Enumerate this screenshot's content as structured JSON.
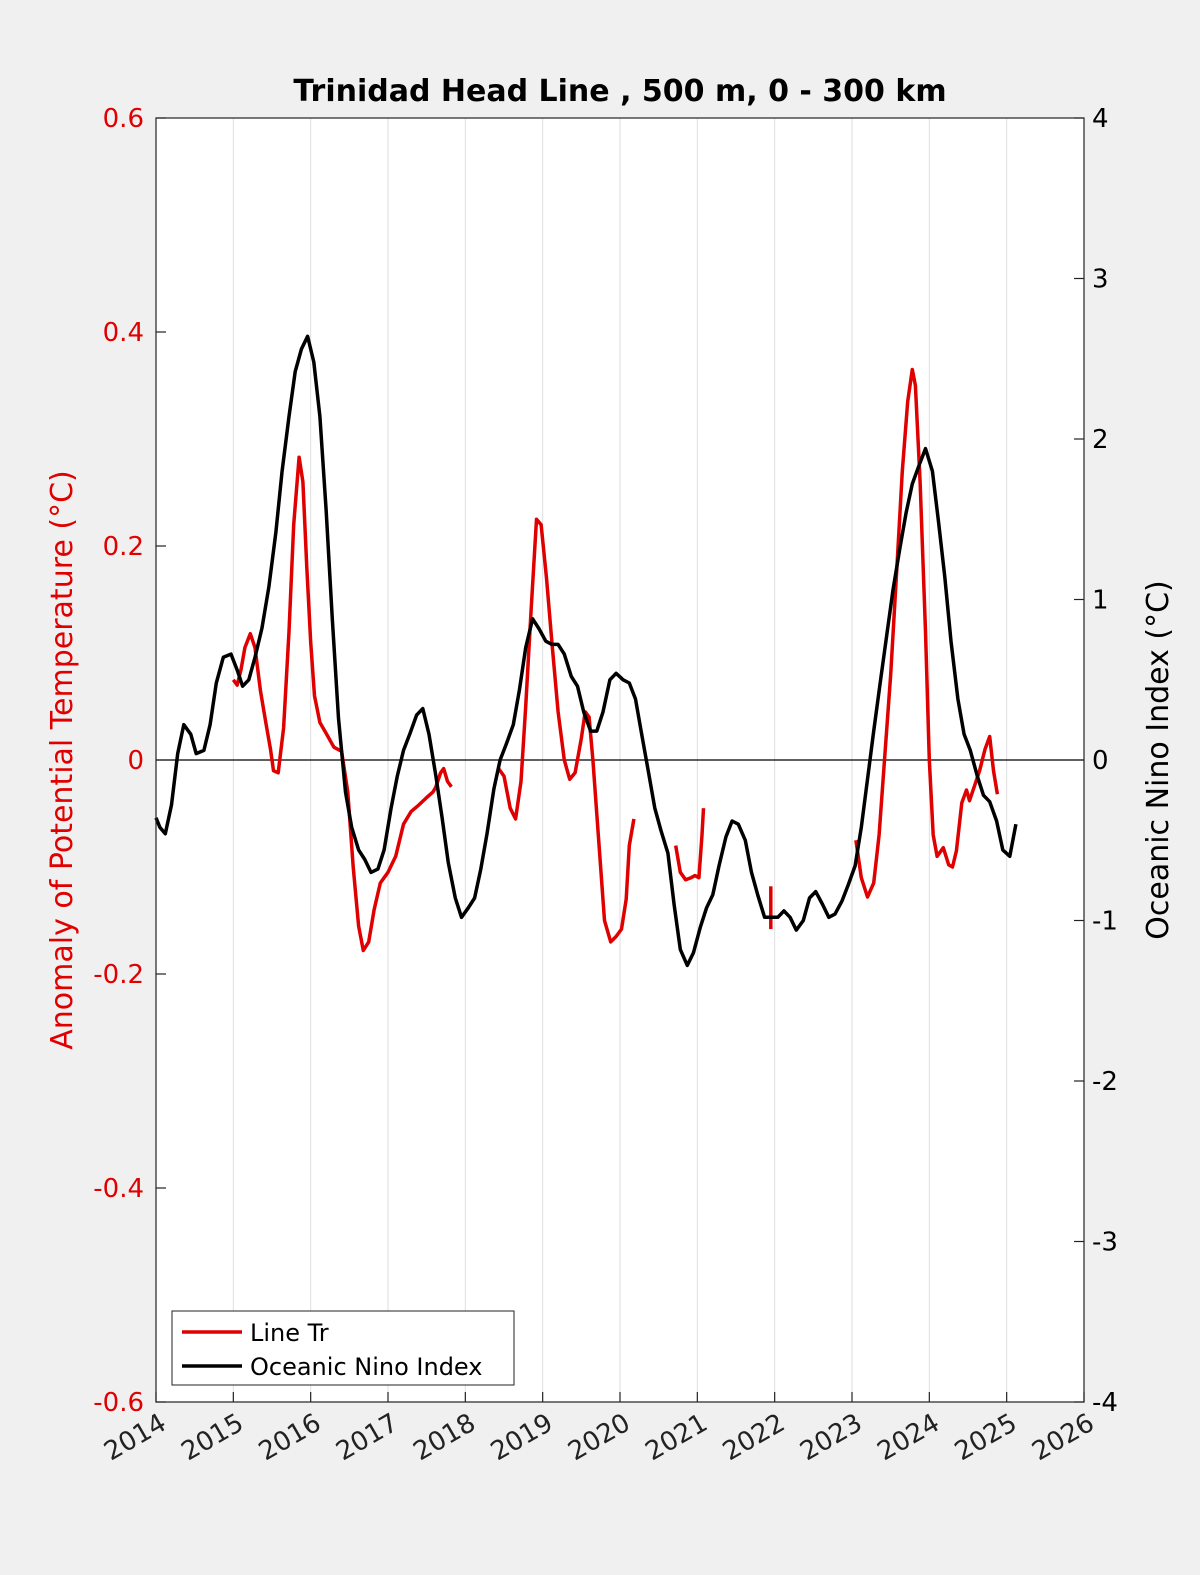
{
  "chart_data": {
    "type": "line",
    "title": "Trinidad Head Line , 500 m, 0 - 300 km",
    "ylabel_left": "Anomaly of Potential Temperature (°C)",
    "ylabel_right": "Oceanic Nino Index (°C)",
    "xlim": [
      2014,
      2026
    ],
    "ylim_left": [
      -0.6,
      0.6
    ],
    "ylim_right": [
      -4,
      4
    ],
    "x_ticks": [
      "2014",
      "2015",
      "2016",
      "2017",
      "2018",
      "2019",
      "2020",
      "2021",
      "2022",
      "2023",
      "2024",
      "2025",
      "2026"
    ],
    "y_left_ticks": [
      "-0.6",
      "-0.4",
      "-0.2",
      "0",
      "0.2",
      "0.4",
      "0.6"
    ],
    "y_right_ticks": [
      "-4",
      "-3",
      "-2",
      "-1",
      "0",
      "1",
      "2",
      "3",
      "4"
    ],
    "grid": "vertical",
    "legend_position": "bottom-left",
    "colors": {
      "left_axis": "#e00000",
      "right_axis": "#000000",
      "line_tr": "#e00000",
      "oni": "#000000"
    },
    "series": [
      {
        "name": "Line Tr",
        "axis": "left",
        "color": "#e00000",
        "segments": [
          [
            [
              2015.0,
              0.075
            ],
            [
              2015.05,
              0.07
            ],
            [
              2015.1,
              0.085
            ],
            [
              2015.15,
              0.105
            ],
            [
              2015.22,
              0.118
            ],
            [
              2015.28,
              0.105
            ],
            [
              2015.35,
              0.065
            ],
            [
              2015.42,
              0.035
            ],
            [
              2015.48,
              0.01
            ],
            [
              2015.52,
              -0.01
            ],
            [
              2015.58,
              -0.012
            ],
            [
              2015.65,
              0.03
            ],
            [
              2015.72,
              0.12
            ],
            [
              2015.78,
              0.22
            ],
            [
              2015.85,
              0.283
            ],
            [
              2015.9,
              0.26
            ],
            [
              2015.95,
              0.18
            ],
            [
              2016.0,
              0.11
            ],
            [
              2016.05,
              0.06
            ],
            [
              2016.12,
              0.035
            ],
            [
              2016.2,
              0.025
            ],
            [
              2016.3,
              0.012
            ],
            [
              2016.4,
              0.008
            ],
            [
              2016.48,
              -0.03
            ],
            [
              2016.55,
              -0.1
            ],
            [
              2016.62,
              -0.155
            ],
            [
              2016.68,
              -0.178
            ],
            [
              2016.75,
              -0.17
            ],
            [
              2016.82,
              -0.14
            ],
            [
              2016.9,
              -0.115
            ],
            [
              2017.0,
              -0.105
            ],
            [
              2017.1,
              -0.09
            ],
            [
              2017.2,
              -0.06
            ],
            [
              2017.3,
              -0.048
            ],
            [
              2017.4,
              -0.042
            ],
            [
              2017.5,
              -0.035
            ],
            [
              2017.58,
              -0.03
            ],
            [
              2017.62,
              -0.025
            ],
            [
              2017.68,
              -0.012
            ],
            [
              2017.72,
              -0.008
            ],
            [
              2017.77,
              -0.02
            ],
            [
              2017.82,
              -0.025
            ]
          ],
          [
            [
              2018.42,
              -0.007
            ],
            [
              2018.5,
              -0.015
            ],
            [
              2018.58,
              -0.045
            ],
            [
              2018.65,
              -0.055
            ],
            [
              2018.72,
              -0.02
            ],
            [
              2018.78,
              0.05
            ],
            [
              2018.85,
              0.14
            ],
            [
              2018.92,
              0.225
            ],
            [
              2018.98,
              0.22
            ],
            [
              2019.05,
              0.17
            ],
            [
              2019.12,
              0.11
            ],
            [
              2019.2,
              0.045
            ],
            [
              2019.28,
              0.0
            ],
            [
              2019.35,
              -0.018
            ],
            [
              2019.42,
              -0.012
            ],
            [
              2019.5,
              0.02
            ],
            [
              2019.55,
              0.045
            ],
            [
              2019.6,
              0.04
            ],
            [
              2019.65,
              0.0
            ],
            [
              2019.72,
              -0.07
            ],
            [
              2019.8,
              -0.15
            ],
            [
              2019.88,
              -0.17
            ],
            [
              2019.95,
              -0.165
            ],
            [
              2020.02,
              -0.158
            ],
            [
              2020.08,
              -0.13
            ],
            [
              2020.12,
              -0.08
            ],
            [
              2020.18,
              -0.055
            ]
          ],
          [
            [
              2020.72,
              -0.08
            ],
            [
              2020.78,
              -0.105
            ],
            [
              2020.85,
              -0.112
            ],
            [
              2020.92,
              -0.11
            ],
            [
              2020.97,
              -0.108
            ],
            [
              2021.02,
              -0.11
            ],
            [
              2021.06,
              -0.07
            ],
            [
              2021.08,
              -0.045
            ]
          ],
          [
            [
              2021.95,
              -0.118
            ],
            [
              2021.95,
              -0.158
            ]
          ],
          [
            [
              2023.05,
              -0.075
            ],
            [
              2023.12,
              -0.11
            ],
            [
              2023.2,
              -0.128
            ],
            [
              2023.28,
              -0.115
            ],
            [
              2023.35,
              -0.07
            ],
            [
              2023.42,
              0.0
            ],
            [
              2023.5,
              0.08
            ],
            [
              2023.58,
              0.18
            ],
            [
              2023.65,
              0.27
            ],
            [
              2023.72,
              0.335
            ],
            [
              2023.78,
              0.365
            ],
            [
              2023.82,
              0.35
            ],
            [
              2023.88,
              0.26
            ],
            [
              2023.95,
              0.12
            ],
            [
              2024.0,
              0.0
            ],
            [
              2024.05,
              -0.07
            ],
            [
              2024.1,
              -0.09
            ],
            [
              2024.18,
              -0.082
            ],
            [
              2024.25,
              -0.098
            ],
            [
              2024.3,
              -0.1
            ],
            [
              2024.35,
              -0.085
            ],
            [
              2024.42,
              -0.04
            ],
            [
              2024.48,
              -0.028
            ],
            [
              2024.52,
              -0.038
            ],
            [
              2024.58,
              -0.025
            ],
            [
              2024.65,
              -0.01
            ],
            [
              2024.72,
              0.01
            ],
            [
              2024.78,
              0.022
            ],
            [
              2024.83,
              -0.01
            ],
            [
              2024.88,
              -0.032
            ]
          ]
        ]
      },
      {
        "name": "Oceanic Nino Index",
        "axis": "right",
        "color": "#000000",
        "segments": [
          [
            [
              2014.0,
              -0.36
            ],
            [
              2014.05,
              -0.42
            ],
            [
              2014.12,
              -0.46
            ],
            [
              2014.2,
              -0.28
            ],
            [
              2014.28,
              0.04
            ],
            [
              2014.36,
              0.22
            ],
            [
              2014.45,
              0.16
            ],
            [
              2014.52,
              0.04
            ],
            [
              2014.62,
              0.06
            ],
            [
              2014.7,
              0.22
            ],
            [
              2014.78,
              0.48
            ],
            [
              2014.87,
              0.64
            ],
            [
              2014.97,
              0.66
            ],
            [
              2015.05,
              0.56
            ],
            [
              2015.12,
              0.46
            ],
            [
              2015.2,
              0.5
            ],
            [
              2015.28,
              0.64
            ],
            [
              2015.37,
              0.82
            ],
            [
              2015.46,
              1.08
            ],
            [
              2015.55,
              1.42
            ],
            [
              2015.63,
              1.8
            ],
            [
              2015.72,
              2.14
            ],
            [
              2015.8,
              2.42
            ],
            [
              2015.88,
              2.56
            ],
            [
              2015.96,
              2.64
            ],
            [
              2016.04,
              2.48
            ],
            [
              2016.12,
              2.14
            ],
            [
              2016.2,
              1.56
            ],
            [
              2016.28,
              0.88
            ],
            [
              2016.36,
              0.26
            ],
            [
              2016.45,
              -0.2
            ],
            [
              2016.53,
              -0.42
            ],
            [
              2016.62,
              -0.56
            ],
            [
              2016.7,
              -0.62
            ],
            [
              2016.78,
              -0.7
            ],
            [
              2016.87,
              -0.68
            ],
            [
              2016.95,
              -0.56
            ],
            [
              2017.04,
              -0.3
            ],
            [
              2017.12,
              -0.1
            ],
            [
              2017.2,
              0.06
            ],
            [
              2017.28,
              0.16
            ],
            [
              2017.37,
              0.28
            ],
            [
              2017.45,
              0.32
            ],
            [
              2017.53,
              0.16
            ],
            [
              2017.62,
              -0.1
            ],
            [
              2017.7,
              -0.36
            ],
            [
              2017.78,
              -0.64
            ],
            [
              2017.87,
              -0.86
            ],
            [
              2017.95,
              -0.98
            ],
            [
              2018.04,
              -0.92
            ],
            [
              2018.12,
              -0.86
            ],
            [
              2018.2,
              -0.68
            ],
            [
              2018.28,
              -0.46
            ],
            [
              2018.37,
              -0.18
            ],
            [
              2018.45,
              0.0
            ],
            [
              2018.53,
              0.1
            ],
            [
              2018.62,
              0.22
            ],
            [
              2018.7,
              0.44
            ],
            [
              2018.78,
              0.7
            ],
            [
              2018.87,
              0.88
            ],
            [
              2018.95,
              0.82
            ],
            [
              2019.04,
              0.74
            ],
            [
              2019.12,
              0.72
            ],
            [
              2019.2,
              0.72
            ],
            [
              2019.28,
              0.66
            ],
            [
              2019.37,
              0.52
            ],
            [
              2019.45,
              0.46
            ],
            [
              2019.53,
              0.3
            ],
            [
              2019.62,
              0.18
            ],
            [
              2019.7,
              0.18
            ],
            [
              2019.78,
              0.3
            ],
            [
              2019.87,
              0.5
            ],
            [
              2019.95,
              0.54
            ],
            [
              2020.04,
              0.5
            ],
            [
              2020.12,
              0.48
            ],
            [
              2020.2,
              0.38
            ],
            [
              2020.28,
              0.16
            ],
            [
              2020.37,
              -0.08
            ],
            [
              2020.45,
              -0.3
            ],
            [
              2020.53,
              -0.44
            ],
            [
              2020.62,
              -0.58
            ],
            [
              2020.7,
              -0.9
            ],
            [
              2020.78,
              -1.18
            ],
            [
              2020.87,
              -1.28
            ],
            [
              2020.95,
              -1.2
            ],
            [
              2021.04,
              -1.04
            ],
            [
              2021.12,
              -0.92
            ],
            [
              2021.2,
              -0.84
            ],
            [
              2021.28,
              -0.66
            ],
            [
              2021.37,
              -0.48
            ],
            [
              2021.45,
              -0.38
            ],
            [
              2021.53,
              -0.4
            ],
            [
              2021.62,
              -0.5
            ],
            [
              2021.7,
              -0.7
            ],
            [
              2021.78,
              -0.84
            ],
            [
              2021.87,
              -0.98
            ],
            [
              2021.95,
              -0.98
            ],
            [
              2022.04,
              -0.98
            ],
            [
              2022.12,
              -0.94
            ],
            [
              2022.2,
              -0.98
            ],
            [
              2022.28,
              -1.06
            ],
            [
              2022.37,
              -1.0
            ],
            [
              2022.45,
              -0.86
            ],
            [
              2022.53,
              -0.82
            ],
            [
              2022.62,
              -0.9
            ],
            [
              2022.7,
              -0.98
            ],
            [
              2022.78,
              -0.96
            ],
            [
              2022.87,
              -0.88
            ],
            [
              2022.95,
              -0.78
            ],
            [
              2023.04,
              -0.66
            ],
            [
              2023.12,
              -0.42
            ],
            [
              2023.2,
              -0.12
            ],
            [
              2023.28,
              0.18
            ],
            [
              2023.37,
              0.5
            ],
            [
              2023.45,
              0.78
            ],
            [
              2023.53,
              1.06
            ],
            [
              2023.62,
              1.32
            ],
            [
              2023.7,
              1.54
            ],
            [
              2023.78,
              1.72
            ],
            [
              2023.87,
              1.84
            ],
            [
              2023.95,
              1.94
            ],
            [
              2024.04,
              1.8
            ],
            [
              2024.12,
              1.48
            ],
            [
              2024.2,
              1.14
            ],
            [
              2024.28,
              0.74
            ],
            [
              2024.37,
              0.38
            ],
            [
              2024.45,
              0.16
            ],
            [
              2024.53,
              0.06
            ],
            [
              2024.62,
              -0.1
            ],
            [
              2024.7,
              -0.22
            ],
            [
              2024.78,
              -0.26
            ],
            [
              2024.87,
              -0.38
            ],
            [
              2024.95,
              -0.56
            ],
            [
              2025.04,
              -0.6
            ],
            [
              2025.12,
              -0.4
            ]
          ]
        ]
      }
    ]
  },
  "legend": {
    "items": [
      "Line Tr",
      "Oceanic Nino Index"
    ]
  }
}
